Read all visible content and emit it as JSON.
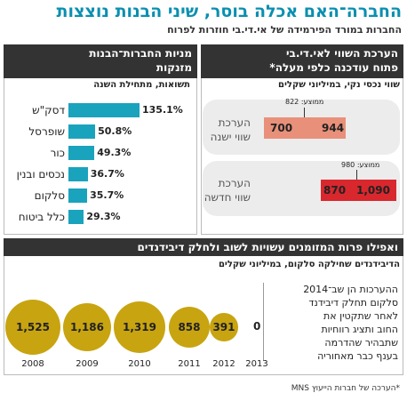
{
  "header": {
    "title": "החברה־האם אכלה בוסר, שיני הבנות נוצצות",
    "subtitle": "החברות במורד הפירמידה של אי.די.בי חוזרות לפרוח"
  },
  "left_panel": {
    "title_line1": "מניות החברות־הבנות",
    "title_line2": "מזנקות",
    "caption": "תשואות, מתחילת השנה",
    "bars": [
      {
        "label": "דסק\"ש",
        "value": "135.1%",
        "num": 135.1
      },
      {
        "label": "שופרסל",
        "value": "50.8%",
        "num": 50.8
      },
      {
        "label": "כור",
        "value": "49.3%",
        "num": 49.3
      },
      {
        "label": "נכסים ובנין",
        "value": "36.7%",
        "num": 36.7
      },
      {
        "label": "סלקום",
        "value": "35.7%",
        "num": 35.7
      },
      {
        "label": "כלל ביטוח",
        "value": "29.3%",
        "num": 29.3
      }
    ]
  },
  "right_panel": {
    "title_line1": "הערכת השווי לאי.די.בי",
    "title_line2": "פתוח עודכנה כלפי מעלה*",
    "caption": "שווי נכסי נקי, במיליוני שקלים",
    "old": {
      "label_line1": "הערכת",
      "label_line2": "שווי ישנה",
      "low": "700",
      "high": "944",
      "avg_label": "ממוצע: 822",
      "color": "#e8907a"
    },
    "new": {
      "label_line1": "הערכת",
      "label_line2": "שווי חדשה",
      "low": "870",
      "high": "1,090",
      "avg_label": "ממוצע: 980",
      "color": "#d9272e"
    }
  },
  "bottom_panel": {
    "title": "ואפילו פרות המזומנים עשויות לשוב ולחלק דיבידנדים",
    "caption": "הדיבידנדים שחילקה סלקום, במיליוני שקלים",
    "note_lines": [
      "ההערכות הן שב־2014",
      "סלקום תחלק דיבידנד",
      "לאחר שתקטין את",
      "החוב ותציג רווחיות",
      "שתבהיר שהדרמה",
      "בענף כבר מאחוריה"
    ],
    "circles": [
      {
        "year": "2008",
        "value": "1,525"
      },
      {
        "year": "2009",
        "value": "1,186"
      },
      {
        "year": "2010",
        "value": "1,319"
      },
      {
        "year": "2011",
        "value": "858"
      },
      {
        "year": "2012",
        "value": "391"
      },
      {
        "year": "2013",
        "value": "0"
      }
    ]
  },
  "footnote": "*הערכה של חברות הייעוץ MNS"
}
